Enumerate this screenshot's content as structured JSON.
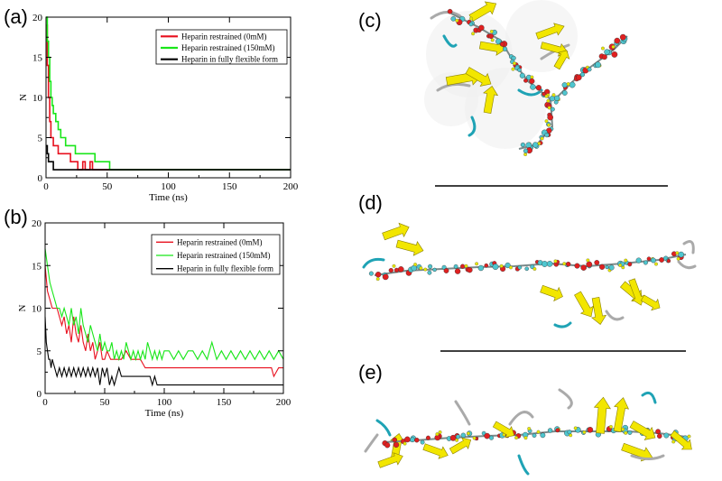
{
  "panels": {
    "a": "(a)",
    "b": "(b)",
    "c": "(c)",
    "d": "(d)",
    "e": "(e)"
  },
  "colors": {
    "red": "#e8101e",
    "green": "#19e619",
    "black": "#000000",
    "helix_yellow": "#f2e600",
    "coil_cyan": "#1fa3b5",
    "atom_red": "#e02020",
    "atom_cyan": "#4fc6cf"
  },
  "icons": [
    "molecular-structure-c",
    "molecular-structure-d",
    "molecular-structure-e"
  ],
  "chart_data": [
    {
      "id": "a",
      "type": "line",
      "xlabel": "Time (ns)",
      "ylabel": "N",
      "xlim": [
        0,
        200
      ],
      "ylim": [
        0,
        20
      ],
      "xticks": [
        0,
        50,
        100,
        150,
        200
      ],
      "yticks": [
        0,
        5,
        10,
        15,
        20
      ],
      "legend": "top-right",
      "series": [
        {
          "name": "Heparin restrained (0mM)",
          "color": "#e8101e",
          "x": [
            0,
            1,
            2,
            3,
            4,
            5,
            6,
            8,
            10,
            14,
            18,
            20,
            22,
            24,
            26,
            28,
            30,
            32,
            34,
            36,
            38,
            40,
            200
          ],
          "y": [
            19,
            14,
            10,
            7,
            5,
            5,
            4,
            4,
            3,
            3,
            3,
            2,
            2,
            2,
            1,
            1,
            2,
            1,
            1,
            2,
            1,
            1,
            1
          ]
        },
        {
          "name": "Heparin restrained (150mM)",
          "color": "#19e619",
          "x": [
            0,
            1,
            2,
            3,
            4,
            5,
            6,
            8,
            10,
            12,
            14,
            16,
            20,
            24,
            30,
            34,
            38,
            40,
            44,
            48,
            52,
            54,
            200
          ],
          "y": [
            20,
            17,
            15,
            12,
            10,
            9,
            8,
            7,
            6,
            5,
            5,
            4,
            4,
            3,
            3,
            3,
            3,
            2,
            2,
            2,
            1,
            1,
            1
          ]
        },
        {
          "name": "Heparin  in fully flexible form",
          "color": "#000000",
          "x": [
            0,
            1,
            2,
            3,
            4,
            5,
            6,
            7,
            8,
            9,
            10,
            200
          ],
          "y": [
            4,
            3,
            2,
            2,
            2,
            2,
            1,
            1,
            1,
            1,
            1,
            1
          ]
        }
      ]
    },
    {
      "id": "b",
      "type": "line",
      "xlabel": "Time (ns)",
      "ylabel": "N",
      "xlim": [
        0,
        200
      ],
      "ylim": [
        0,
        20
      ],
      "xticks": [
        0,
        50,
        100,
        150,
        200
      ],
      "yticks": [
        0,
        5,
        10,
        15,
        20
      ],
      "legend": "top-right",
      "series": [
        {
          "name": "Heparin restrained (0mM)",
          "color": "#e8101e",
          "x": [
            0,
            2,
            4,
            6,
            8,
            10,
            12,
            14,
            16,
            18,
            20,
            22,
            24,
            26,
            28,
            30,
            32,
            34,
            36,
            38,
            40,
            42,
            44,
            46,
            48,
            50,
            52,
            55,
            58,
            60,
            64,
            68,
            72,
            76,
            80,
            84,
            88,
            92,
            96,
            100,
            120,
            130,
            150,
            160,
            180,
            190,
            192,
            196,
            200
          ],
          "y": [
            15,
            12,
            11,
            10,
            10,
            10,
            9,
            8,
            9,
            7,
            8,
            6,
            9,
            7,
            6,
            8,
            6,
            5,
            7,
            5,
            6,
            4,
            5,
            6,
            4,
            4,
            5,
            4,
            4,
            4,
            4,
            5,
            4,
            4,
            4,
            3,
            3,
            3,
            3,
            3,
            3,
            3,
            3,
            3,
            3,
            3,
            2,
            3,
            3
          ]
        },
        {
          "name": "Heparin restrained (150mM)",
          "color": "#19e619",
          "x": [
            0,
            2,
            4,
            6,
            8,
            10,
            12,
            14,
            16,
            18,
            20,
            22,
            24,
            26,
            28,
            30,
            32,
            34,
            36,
            38,
            40,
            42,
            44,
            46,
            48,
            50,
            52,
            54,
            56,
            58,
            60,
            62,
            64,
            66,
            68,
            70,
            72,
            74,
            76,
            78,
            80,
            82,
            84,
            86,
            88,
            90,
            92,
            94,
            96,
            98,
            100,
            104,
            108,
            112,
            116,
            120,
            124,
            128,
            132,
            136,
            140,
            144,
            148,
            152,
            156,
            160,
            164,
            168,
            172,
            176,
            180,
            184,
            188,
            192,
            196,
            200
          ],
          "y": [
            17,
            15,
            13,
            12,
            11,
            10,
            10,
            9,
            10,
            9,
            8,
            10,
            8,
            9,
            7,
            10,
            8,
            7,
            6,
            8,
            7,
            6,
            5,
            7,
            5,
            6,
            5,
            5,
            6,
            4,
            5,
            4,
            5,
            4,
            6,
            5,
            4,
            5,
            4,
            5,
            4,
            5,
            4,
            6,
            5,
            4,
            5,
            4,
            5,
            4,
            5,
            5,
            4,
            5,
            4,
            5,
            5,
            4,
            5,
            4,
            6,
            4,
            5,
            4,
            5,
            4,
            5,
            4,
            5,
            4,
            5,
            4,
            5,
            4,
            5,
            4
          ]
        },
        {
          "name": "Heparin in fully flexible form",
          "color": "#000000",
          "x": [
            0,
            1,
            2,
            3,
            4,
            5,
            6,
            8,
            10,
            12,
            14,
            16,
            18,
            20,
            22,
            24,
            26,
            28,
            30,
            32,
            34,
            36,
            38,
            40,
            42,
            44,
            46,
            48,
            50,
            52,
            54,
            56,
            58,
            60,
            62,
            64,
            66,
            68,
            70,
            72,
            74,
            76,
            78,
            80,
            82,
            84,
            86,
            88,
            90,
            92,
            94,
            100,
            200
          ],
          "y": [
            9,
            6,
            5,
            4,
            4,
            3,
            4,
            3,
            2,
            3,
            2,
            3,
            2,
            3,
            2,
            3,
            2,
            3,
            2,
            3,
            2,
            3,
            2,
            3,
            2,
            3,
            1,
            3,
            2,
            3,
            1,
            2,
            1,
            2,
            3,
            2,
            2,
            2,
            2,
            2,
            2,
            2,
            2,
            2,
            2,
            2,
            2,
            2,
            1,
            2,
            1,
            1,
            1
          ]
        }
      ]
    }
  ]
}
